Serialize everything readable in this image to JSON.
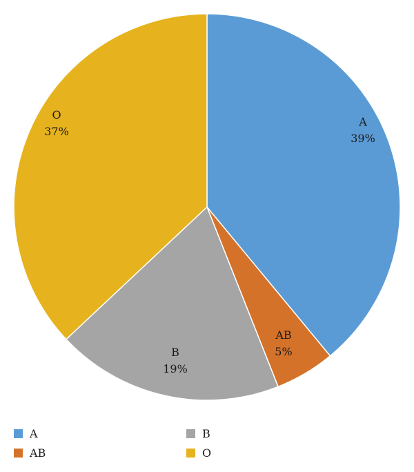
{
  "chart_data": {
    "type": "pie",
    "categories": [
      "A",
      "AB",
      "B",
      "O"
    ],
    "values": [
      39,
      5,
      19,
      37
    ],
    "value_labels": [
      "39%",
      "5%",
      "19%",
      "37%"
    ],
    "colors": [
      "#5B9BD5",
      "#D4722A",
      "#A5A5A5",
      "#E6B31E"
    ],
    "title": "",
    "start_angle_deg": 0,
    "direction": "clockwise",
    "legend_position": "bottom",
    "legend_order": [
      "A",
      "B",
      "AB",
      "O"
    ]
  }
}
